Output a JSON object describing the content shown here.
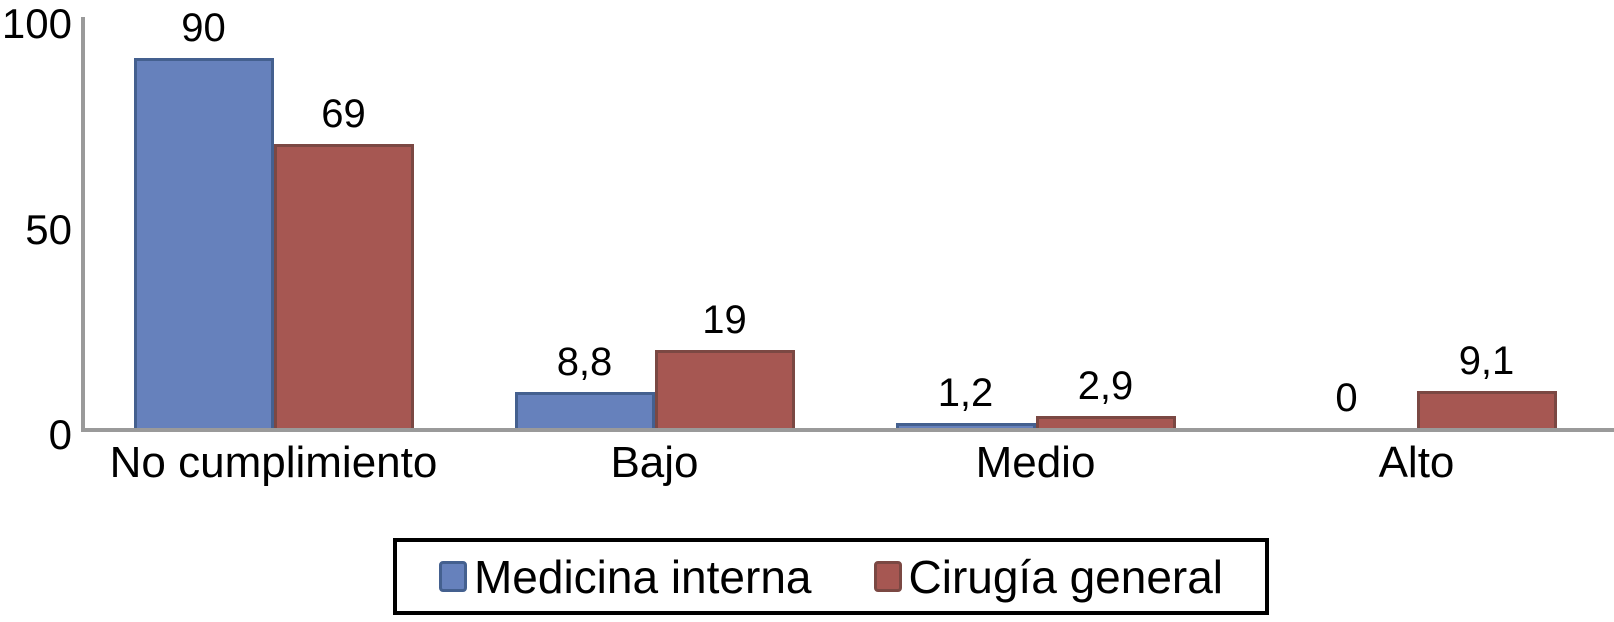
{
  "chart_data": {
    "type": "bar",
    "title": "",
    "xlabel": "",
    "ylabel": "",
    "categories": [
      "No cumplimiento",
      "Bajo",
      "Medio",
      "Alto"
    ],
    "series": [
      {
        "name": "Medicina interna",
        "color": "#6681BC",
        "border_color": "#44608F",
        "values": [
          90,
          8.8,
          1.2,
          0
        ],
        "value_labels": [
          "90",
          "8,8",
          "1,2",
          "0"
        ]
      },
      {
        "name": "Cirugía general",
        "color": "#A65752",
        "border_color": "#7B4843",
        "values": [
          69,
          19,
          2.9,
          9.1
        ],
        "value_labels": [
          "69",
          "19",
          "2,9",
          "9,1"
        ]
      }
    ],
    "ylim": [
      0,
      100
    ],
    "yticks": [
      0,
      50,
      100
    ],
    "ytick_labels": [
      "0",
      "50",
      "100"
    ],
    "grid": false,
    "legend_position": "bottom",
    "axis_color": "#9A9A9A",
    "text_color": "#000000",
    "legend_border_color": "#000000",
    "background_color": "#FFFFFF"
  }
}
